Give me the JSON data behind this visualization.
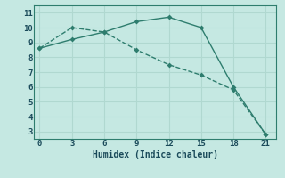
{
  "line1_x": [
    0,
    3,
    6,
    9,
    12,
    15,
    18,
    21
  ],
  "line1_y": [
    8.6,
    10.0,
    9.7,
    8.5,
    7.5,
    6.8,
    5.8,
    2.8
  ],
  "line2_x": [
    0,
    3,
    6,
    9,
    12,
    15,
    18,
    21
  ],
  "line2_y": [
    8.6,
    9.2,
    9.7,
    10.4,
    10.7,
    10.0,
    6.0,
    2.8
  ],
  "xlabel": "Humidex (Indice chaleur)",
  "xlim": [
    -0.5,
    22
  ],
  "ylim": [
    2.5,
    11.5
  ],
  "yticks": [
    3,
    4,
    5,
    6,
    7,
    8,
    9,
    10,
    11
  ],
  "xticks": [
    0,
    3,
    6,
    9,
    12,
    15,
    18,
    21
  ],
  "line_color": "#2e7d6e",
  "bg_color": "#c5e8e2",
  "grid_color": "#b0d8d0",
  "font_color": "#1a4a5a",
  "tick_fontsize": 6.5,
  "xlabel_fontsize": 7
}
